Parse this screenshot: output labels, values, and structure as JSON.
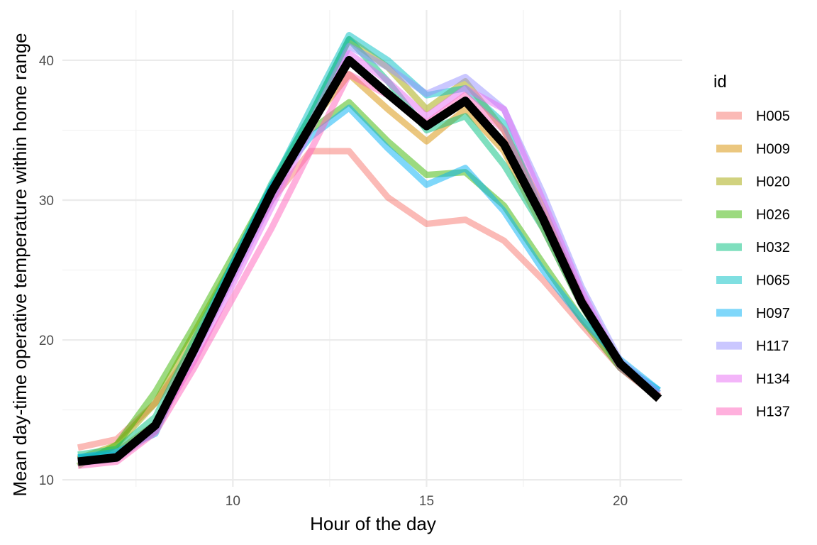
{
  "chart_data": {
    "type": "line",
    "xlabel": "Hour of the day",
    "ylabel": "Mean day-time operative temperature within home range",
    "xlim": [
      5.6,
      21.6
    ],
    "ylim": [
      9.5,
      43.6
    ],
    "x_ticks": [
      10,
      15,
      20
    ],
    "x_tick_labels": [
      "10",
      "15",
      "20"
    ],
    "x_minor_ticks": [
      7.5,
      12.5,
      17.5
    ],
    "y_ticks": [
      10,
      20,
      30,
      40
    ],
    "y_tick_labels": [
      "10",
      "20",
      "30",
      "40"
    ],
    "y_minor_ticks": [
      15,
      25,
      35
    ],
    "grid": true,
    "legend": {
      "title": "id",
      "placement": "right"
    },
    "x": [
      6,
      7,
      8,
      9,
      10,
      11,
      12,
      13,
      14,
      15,
      16,
      17,
      18,
      19,
      20,
      21
    ],
    "series": [
      {
        "name": "H005",
        "color": "#F8766D",
        "values": [
          12.3,
          12.9,
          15.5,
          19.5,
          25.2,
          30.0,
          33.5,
          33.5,
          30.2,
          28.3,
          28.6,
          27.1,
          24.3,
          21.1,
          18.0,
          16.0
        ]
      },
      {
        "name": "H009",
        "color": "#D89000",
        "values": [
          11.5,
          12.0,
          14.0,
          19.5,
          25.0,
          30.5,
          35.5,
          39.0,
          36.5,
          34.2,
          36.5,
          33.5,
          28.0,
          22.5,
          18.0,
          15.9
        ]
      },
      {
        "name": "H020",
        "color": "#A3A500",
        "values": [
          11.5,
          12.5,
          15.5,
          20.5,
          25.5,
          31.0,
          36.0,
          41.5,
          39.5,
          36.5,
          38.5,
          35.0,
          29.5,
          23.0,
          18.2,
          16.0
        ]
      },
      {
        "name": "H026",
        "color": "#39B600",
        "values": [
          11.0,
          12.5,
          16.3,
          21.0,
          26.0,
          31.0,
          35.0,
          37.0,
          34.2,
          31.8,
          32.0,
          29.6,
          25.5,
          21.5,
          18.0,
          15.8
        ]
      },
      {
        "name": "H032",
        "color": "#00BF7D",
        "values": [
          11.8,
          12.2,
          14.5,
          20.0,
          25.5,
          31.2,
          36.0,
          41.5,
          38.5,
          35.0,
          36.0,
          32.5,
          28.0,
          22.5,
          18.0,
          16.2
        ]
      },
      {
        "name": "H065",
        "color": "#00BFC4",
        "values": [
          11.6,
          11.8,
          13.5,
          19.5,
          25.0,
          31.0,
          36.5,
          41.8,
          40.0,
          37.5,
          38.0,
          35.5,
          29.0,
          23.0,
          18.3,
          16.4
        ]
      },
      {
        "name": "H097",
        "color": "#00B0F6",
        "values": [
          11.6,
          12.0,
          13.3,
          19.5,
          25.5,
          31.0,
          34.5,
          36.6,
          33.7,
          31.1,
          32.3,
          29.2,
          25.0,
          21.5,
          18.6,
          16.4
        ]
      },
      {
        "name": "H117",
        "color": "#9590FF",
        "values": [
          11.2,
          11.5,
          13.5,
          19.0,
          24.5,
          30.0,
          35.5,
          41.0,
          39.5,
          37.6,
          38.8,
          36.5,
          30.5,
          23.8,
          18.5,
          16.2
        ]
      },
      {
        "name": "H134",
        "color": "#E76BF3",
        "values": [
          11.3,
          11.6,
          13.8,
          18.5,
          24.0,
          29.5,
          35.0,
          40.5,
          38.5,
          36.0,
          38.0,
          36.5,
          30.0,
          23.5,
          18.2,
          16.0
        ]
      },
      {
        "name": "H137",
        "color": "#FF62BC",
        "values": [
          11.0,
          11.3,
          13.4,
          18.0,
          23.0,
          28.0,
          33.5,
          39.0,
          37.5,
          35.5,
          37.5,
          35.0,
          29.0,
          23.0,
          18.0,
          15.8
        ]
      }
    ],
    "mean_series": {
      "color": "#000000",
      "values": [
        11.3,
        11.6,
        13.9,
        19.3,
        25.0,
        30.6,
        35.3,
        40.0,
        37.6,
        35.3,
        37.1,
        34.0,
        28.7,
        22.7,
        18.3,
        15.8
      ]
    }
  }
}
